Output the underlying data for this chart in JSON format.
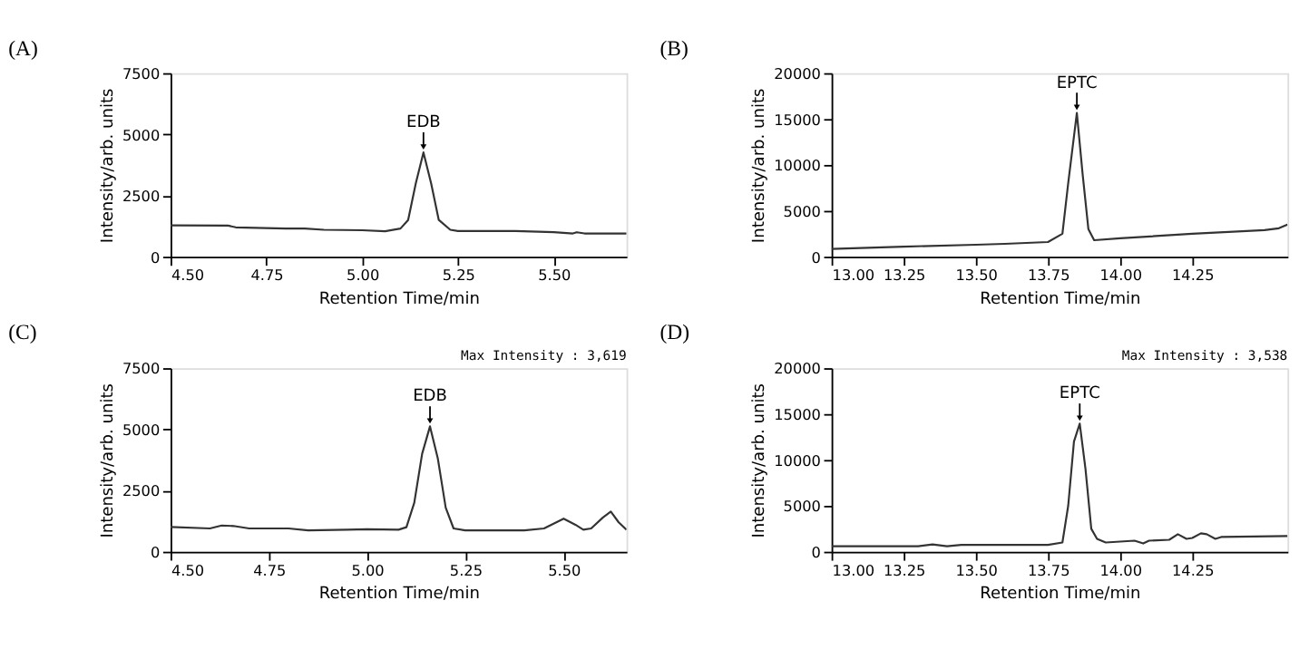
{
  "chart_data": [
    {
      "type": "line",
      "title": "(A)",
      "xlabel": "Retention Time/min",
      "ylabel": "Intensity/arb. units",
      "xlim": [
        4.5,
        5.69
      ],
      "xticks": [
        {
          "value": 4.5,
          "label": "4.50"
        },
        4.75,
        {
          "value": 5.0,
          "label": "5.00"
        },
        5.25,
        {
          "value": 5.5,
          "label": "5.50"
        }
      ],
      "ylim": [
        0,
        7500
      ],
      "yticks": [
        0,
        2500,
        5000,
        7500
      ],
      "grid": false,
      "x": [
        4.5,
        4.65,
        4.67,
        4.8,
        4.85,
        4.9,
        5.0,
        5.06,
        5.1,
        5.12,
        5.14,
        5.16,
        5.18,
        5.2,
        5.23,
        5.25,
        5.4,
        5.5,
        5.55,
        5.56,
        5.58,
        5.69
      ],
      "series": [
        {
          "color": "#333333",
          "values": [
            1280,
            1270,
            1200,
            1150,
            1150,
            1100,
            1080,
            1040,
            1150,
            1500,
            3000,
            4260,
            3000,
            1500,
            1100,
            1050,
            1050,
            1000,
            950,
            1000,
            950,
            950
          ]
        }
      ],
      "annotations": [
        {
          "text": "EDB",
          "x": 5.16,
          "y": 4260
        }
      ]
    },
    {
      "type": "line",
      "title": "(B)",
      "xlabel": "Retention Time/min",
      "ylabel": "Intensity/arb. units",
      "xlim": [
        13.0,
        14.58
      ],
      "xticks": [
        {
          "value": 13.0,
          "label": "13.00"
        },
        13.25,
        {
          "value": 13.5,
          "label": "13.50"
        },
        13.75,
        {
          "value": 14.0,
          "label": "14.00"
        },
        14.25
      ],
      "ylim": [
        0,
        20000
      ],
      "yticks": [
        0,
        5000,
        10000,
        15000,
        20000
      ],
      "grid": false,
      "x": [
        13.0,
        13.2,
        13.25,
        13.5,
        13.6,
        13.75,
        13.8,
        13.82,
        13.85,
        13.87,
        13.89,
        13.91,
        14.0,
        14.25,
        14.5,
        14.55,
        14.58
      ],
      "series": [
        {
          "color": "#333333",
          "values": [
            850,
            1050,
            1100,
            1300,
            1400,
            1600,
            2500,
            8000,
            15670,
            9000,
            3000,
            1800,
            2000,
            2500,
            2900,
            3100,
            3500
          ]
        }
      ],
      "annotations": [
        {
          "text": "EPTC",
          "x": 13.85,
          "y": 15670
        }
      ]
    },
    {
      "type": "line",
      "title": "(C)",
      "xlabel": "Retention Time/min",
      "ylabel": "Intensity/arb. units",
      "xlim": [
        4.5,
        5.66
      ],
      "xticks": [
        {
          "value": 4.5,
          "label": "4.50"
        },
        4.75,
        {
          "value": 5.0,
          "label": "5.00"
        },
        5.25,
        {
          "value": 5.5,
          "label": "5.50"
        }
      ],
      "ylim": [
        0,
        7500
      ],
      "yticks": [
        0,
        2500,
        5000,
        7500
      ],
      "grid": false,
      "x": [
        4.5,
        4.6,
        4.63,
        4.66,
        4.7,
        4.8,
        4.85,
        4.95,
        5.0,
        5.08,
        5.1,
        5.12,
        5.14,
        5.16,
        5.18,
        5.2,
        5.22,
        5.25,
        5.4,
        5.45,
        5.5,
        5.53,
        5.55,
        5.57,
        5.6,
        5.62,
        5.64,
        5.66
      ],
      "series": [
        {
          "color": "#333333",
          "values": [
            1010,
            950,
            1070,
            1050,
            950,
            950,
            870,
            900,
            920,
            900,
            1000,
            2000,
            4000,
            5120,
            3800,
            1800,
            950,
            870,
            870,
            950,
            1350,
            1100,
            900,
            950,
            1400,
            1640,
            1200,
            900
          ]
        }
      ],
      "annotations": [
        {
          "text": "EDB",
          "x": 5.16,
          "y": 5120
        },
        "Max Intensity :  3,619"
      ]
    },
    {
      "type": "line",
      "title": "(D)",
      "xlabel": "Retention Time/min",
      "ylabel": "Intensity/arb. units",
      "xlim": [
        13.0,
        14.58
      ],
      "xticks": [
        {
          "value": 13.0,
          "label": "13.00"
        },
        13.25,
        {
          "value": 13.5,
          "label": "13.50"
        },
        13.75,
        {
          "value": 14.0,
          "label": "14.00"
        },
        14.25
      ],
      "ylim": [
        0,
        20000
      ],
      "yticks": [
        0,
        5000,
        10000,
        15000,
        20000
      ],
      "grid": false,
      "x": [
        13.0,
        13.3,
        13.35,
        13.4,
        13.45,
        13.75,
        13.8,
        13.82,
        13.84,
        13.86,
        13.88,
        13.9,
        13.92,
        13.95,
        14.0,
        14.05,
        14.08,
        14.1,
        14.17,
        14.2,
        14.23,
        14.25,
        14.28,
        14.3,
        14.33,
        14.35,
        14.58
      ],
      "series": [
        {
          "color": "#333333",
          "values": [
            600,
            600,
            800,
            600,
            750,
            750,
            1000,
            5000,
            12000,
            13950,
            9000,
            2500,
            1400,
            1000,
            1100,
            1200,
            900,
            1200,
            1300,
            1900,
            1400,
            1500,
            2000,
            1900,
            1400,
            1600,
            1700
          ]
        }
      ],
      "annotations": [
        {
          "text": "EPTC",
          "x": 13.86,
          "y": 13950
        },
        "Max Intensity :  3,538"
      ]
    }
  ]
}
